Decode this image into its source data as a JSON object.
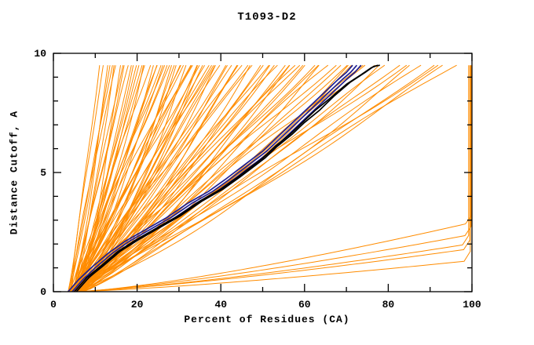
{
  "chart_data": {
    "type": "line",
    "title": "T1093-D2",
    "xlabel": "Percent of Residues (CA)",
    "ylabel": "Distance Cutoff, A",
    "xlim": [
      0,
      100
    ],
    "ylim": [
      0,
      10
    ],
    "x_major_ticks": [
      0,
      20,
      40,
      60,
      80,
      100
    ],
    "x_minor_step": 10,
    "y_major_ticks": [
      0,
      5,
      10
    ],
    "y_minor_step": 1,
    "curve_top_y": 9.5,
    "grid": false,
    "legend": "none",
    "colors": {
      "ensemble": "#ff8c00",
      "navy": "#1f1f93",
      "black": "#000000",
      "frame": "#000000",
      "background": "#ffffff"
    },
    "ensemble_curves": [
      [
        3.5,
        11,
        1.1,
        0
      ],
      [
        4,
        12,
        0.9,
        0
      ],
      [
        4.5,
        13,
        1.3,
        0
      ],
      [
        3.8,
        14,
        1.0,
        0
      ],
      [
        5,
        14.5,
        1.2,
        0
      ],
      [
        4.2,
        15,
        0.85,
        0
      ],
      [
        5.5,
        16,
        1.4,
        0
      ],
      [
        4.8,
        16.5,
        1.0,
        0
      ],
      [
        3.6,
        17,
        1.2,
        0
      ],
      [
        5.2,
        18,
        0.9,
        0
      ],
      [
        4.4,
        18.5,
        1.3,
        0
      ],
      [
        6,
        19,
        1.1,
        0
      ],
      [
        5.8,
        20,
        0.95,
        0
      ],
      [
        4.1,
        20.5,
        1.25,
        0
      ],
      [
        5.4,
        21,
        1.05,
        0
      ],
      [
        4.7,
        21.5,
        1.35,
        0
      ],
      [
        6.2,
        22,
        0.9,
        0
      ],
      [
        3.9,
        13.5,
        1.15,
        0
      ],
      [
        4,
        23,
        1.0,
        0
      ],
      [
        5,
        24,
        1.2,
        0
      ],
      [
        6,
        25,
        0.9,
        0
      ],
      [
        4.5,
        26,
        1.3,
        0
      ],
      [
        5.5,
        27,
        1.05,
        0
      ],
      [
        4.2,
        28,
        0.95,
        0
      ],
      [
        6.5,
        29,
        1.25,
        0
      ],
      [
        5.0,
        30,
        1.1,
        0
      ],
      [
        4.8,
        31,
        0.9,
        0
      ],
      [
        5.8,
        32,
        1.35,
        0
      ],
      [
        4.3,
        33,
        1.0,
        0
      ],
      [
        6.0,
        34,
        1.2,
        0
      ],
      [
        5.2,
        35,
        0.92,
        0
      ],
      [
        4.6,
        36,
        1.28,
        0
      ],
      [
        5.9,
        37,
        1.06,
        0
      ],
      [
        4.9,
        38,
        0.97,
        0
      ],
      [
        6.3,
        39,
        1.18,
        0
      ],
      [
        5.1,
        40,
        1.02,
        0
      ],
      [
        4.4,
        24.5,
        1.22,
        0
      ],
      [
        5.6,
        26.5,
        0.88,
        0
      ],
      [
        6.1,
        28.5,
        1.3,
        0
      ],
      [
        4.0,
        30.5,
        1.08,
        0
      ],
      [
        5.3,
        32.5,
        0.94,
        0
      ],
      [
        6.4,
        34.5,
        1.24,
        0
      ],
      [
        4.7,
        36.5,
        1.0,
        0
      ],
      [
        5.7,
        38.5,
        1.15,
        0
      ],
      [
        4.2,
        25.5,
        1.05,
        0
      ],
      [
        5.4,
        29.5,
        1.32,
        0
      ],
      [
        6.2,
        33.5,
        0.9,
        0
      ],
      [
        4.9,
        37.5,
        1.12,
        0
      ],
      [
        5,
        41,
        1.1,
        0
      ],
      [
        6,
        43,
        0.95,
        0
      ],
      [
        4.5,
        44,
        1.3,
        0
      ],
      [
        5.5,
        46,
        1.05,
        0
      ],
      [
        6.5,
        47,
        1.2,
        0
      ],
      [
        4.8,
        48,
        0.9,
        0
      ],
      [
        5.2,
        50,
        1.25,
        0
      ],
      [
        6.2,
        51,
        1.0,
        0
      ],
      [
        4.3,
        52,
        1.15,
        0
      ],
      [
        5.8,
        54,
        0.92,
        0
      ],
      [
        6.8,
        55,
        1.28,
        0
      ],
      [
        4.6,
        56,
        1.06,
        0
      ],
      [
        5.4,
        57,
        1.18,
        0
      ],
      [
        6.4,
        58,
        0.96,
        0
      ],
      [
        4.9,
        59,
        1.22,
        0
      ],
      [
        5.6,
        60,
        1.08,
        0
      ],
      [
        6.0,
        42,
        1.14,
        0
      ],
      [
        5.0,
        45,
        0.98,
        0
      ],
      [
        4.4,
        49,
        1.26,
        0
      ],
      [
        6.6,
        53,
        1.04,
        0
      ],
      [
        5.9,
        44.5,
        1.16,
        0
      ],
      [
        5.3,
        58.5,
        1.02,
        0
      ],
      [
        5,
        62,
        1.05,
        0
      ],
      [
        6,
        64,
        1.2,
        0
      ],
      [
        4.5,
        66,
        0.95,
        0
      ],
      [
        5.5,
        68,
        1.15,
        0
      ],
      [
        6.5,
        70,
        1.0,
        0
      ],
      [
        4.8,
        72,
        1.25,
        0
      ],
      [
        5.2,
        74,
        1.08,
        0
      ],
      [
        6.2,
        76,
        0.92,
        0
      ],
      [
        5.8,
        78,
        1.18,
        0
      ],
      [
        4.4,
        80,
        1.02,
        0
      ],
      [
        6.8,
        63,
        1.12,
        0
      ],
      [
        5.4,
        67,
        0.97,
        0
      ],
      [
        4.9,
        71,
        1.22,
        0
      ],
      [
        6.4,
        75,
        1.06,
        0
      ],
      [
        5,
        82,
        1.1,
        0
      ],
      [
        6,
        84,
        0.95,
        0
      ],
      [
        5.5,
        86,
        1.2,
        0
      ],
      [
        4.8,
        88,
        1.05,
        0
      ],
      [
        6.2,
        90,
        1.15,
        0
      ],
      [
        5.4,
        92,
        0.98,
        0
      ],
      [
        6.6,
        94,
        1.08,
        0
      ],
      [
        5.8,
        96,
        1.02,
        0
      ],
      [
        4,
        99.5,
        1.8,
        1
      ],
      [
        5,
        99.8,
        2.4,
        1
      ],
      [
        4.5,
        99.6,
        1.3,
        1
      ],
      [
        6,
        99.9,
        2.9,
        1
      ],
      [
        5,
        99.2,
        2.0,
        1
      ]
    ],
    "highlight_curves": [
      {
        "color": "navy",
        "points": [
          [
            3.5,
            0
          ],
          [
            6,
            0.5
          ],
          [
            9,
            1
          ],
          [
            13,
            1.6
          ],
          [
            17,
            2.1
          ],
          [
            22,
            2.6
          ],
          [
            27,
            3.1
          ],
          [
            32,
            3.7
          ],
          [
            37,
            4.2
          ],
          [
            41,
            4.7
          ],
          [
            44,
            5.1
          ],
          [
            47,
            5.5
          ],
          [
            50,
            5.9
          ],
          [
            53,
            6.4
          ],
          [
            56,
            6.9
          ],
          [
            59,
            7.4
          ],
          [
            62,
            7.9
          ],
          [
            65,
            8.4
          ],
          [
            68,
            8.9
          ],
          [
            70,
            9.2
          ],
          [
            71.5,
            9.5
          ]
        ]
      },
      {
        "color": "navy",
        "points": [
          [
            4.5,
            0
          ],
          [
            7,
            0.5
          ],
          [
            10,
            1
          ],
          [
            14,
            1.6
          ],
          [
            18,
            2.1
          ],
          [
            23,
            2.6
          ],
          [
            28,
            3.1
          ],
          [
            33,
            3.7
          ],
          [
            38,
            4.2
          ],
          [
            42,
            4.7
          ],
          [
            45,
            5.1
          ],
          [
            48,
            5.5
          ],
          [
            51,
            5.9
          ],
          [
            54,
            6.4
          ],
          [
            57,
            6.9
          ],
          [
            60,
            7.4
          ],
          [
            63,
            7.9
          ],
          [
            66,
            8.4
          ],
          [
            69,
            8.9
          ],
          [
            71,
            9.2
          ],
          [
            72.5,
            9.5
          ]
        ]
      },
      {
        "color": "navy",
        "points": [
          [
            5.5,
            0
          ],
          [
            8,
            0.5
          ],
          [
            11,
            1
          ],
          [
            15,
            1.6
          ],
          [
            19,
            2.1
          ],
          [
            24,
            2.6
          ],
          [
            29,
            3.1
          ],
          [
            34,
            3.7
          ],
          [
            39,
            4.2
          ],
          [
            43,
            4.7
          ],
          [
            46,
            5.1
          ],
          [
            49,
            5.5
          ],
          [
            52,
            5.9
          ],
          [
            55,
            6.4
          ],
          [
            58,
            6.9
          ],
          [
            61,
            7.4
          ],
          [
            64,
            7.9
          ],
          [
            67,
            8.4
          ],
          [
            70,
            8.9
          ],
          [
            72,
            9.2
          ],
          [
            73.5,
            9.5
          ]
        ]
      },
      {
        "color": "black",
        "points": [
          [
            5,
            0
          ],
          [
            8,
            0.6
          ],
          [
            11.5,
            1.1
          ],
          [
            15.5,
            1.7
          ],
          [
            20,
            2.2
          ],
          [
            25,
            2.7
          ],
          [
            30,
            3.2
          ],
          [
            35,
            3.8
          ],
          [
            40,
            4.3
          ],
          [
            44,
            4.8
          ],
          [
            47,
            5.2
          ],
          [
            50,
            5.6
          ],
          [
            53,
            6.1
          ],
          [
            56.5,
            6.6
          ],
          [
            59.5,
            7.1
          ],
          [
            62.5,
            7.6
          ],
          [
            66,
            8.1
          ],
          [
            70,
            8.7
          ],
          [
            73.5,
            9.1
          ],
          [
            76,
            9.4
          ],
          [
            77.5,
            9.5
          ]
        ]
      },
      {
        "color": "black",
        "points": [
          [
            5.5,
            0
          ],
          [
            8.5,
            0.6
          ],
          [
            12,
            1.1
          ],
          [
            16,
            1.7
          ],
          [
            20.5,
            2.2
          ],
          [
            25.5,
            2.7
          ],
          [
            30.5,
            3.2
          ],
          [
            35.5,
            3.8
          ],
          [
            40.5,
            4.3
          ],
          [
            44.5,
            4.8
          ],
          [
            47.5,
            5.2
          ],
          [
            50.5,
            5.6
          ],
          [
            53.5,
            6.1
          ],
          [
            57,
            6.6
          ],
          [
            60,
            7.1
          ],
          [
            63.5,
            7.6
          ],
          [
            67,
            8.2
          ],
          [
            71,
            8.8
          ],
          [
            74.5,
            9.2
          ],
          [
            76.5,
            9.45
          ],
          [
            78,
            9.5
          ]
        ]
      }
    ]
  }
}
